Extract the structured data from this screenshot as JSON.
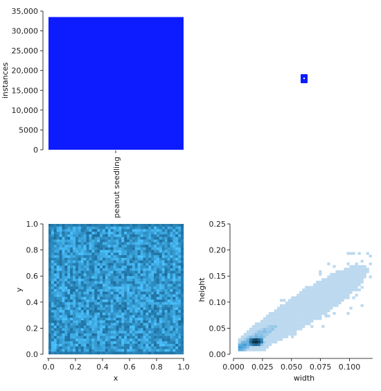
{
  "chart_data": [
    {
      "type": "bar",
      "panel": "top-left",
      "categories": [
        "peanut seedling"
      ],
      "values": [
        33500
      ],
      "ylabel": "instances",
      "ylim": [
        0,
        35000
      ],
      "yticks": [
        "0",
        "5000",
        "10,000",
        "15,000",
        "20,000",
        "25,000",
        "30,000",
        "35,000"
      ],
      "color": "#0d1cff"
    },
    {
      "type": "scatter",
      "panel": "top-right",
      "note_marker_color": "#0d1cff",
      "points": [
        {
          "x": 0.5,
          "y": 0.5
        }
      ]
    },
    {
      "type": "heatmap",
      "panel": "bottom-left",
      "xlabel": "x",
      "ylabel": "y",
      "xlim": [
        0,
        1
      ],
      "ylim": [
        0,
        1
      ],
      "xticks": [
        "0.0",
        "0.2",
        "0.4",
        "0.6",
        "0.8",
        "1.0"
      ],
      "yticks": [
        "0.0",
        "0.2",
        "0.4",
        "0.6",
        "0.8",
        "1.0"
      ],
      "grid_resolution": 50,
      "color_low": "#1e6e9e",
      "color_high": "#4cc3ff"
    },
    {
      "type": "heatmap",
      "panel": "bottom-right",
      "xlabel": "width",
      "ylabel": "height",
      "xlim": [
        0,
        0.12
      ],
      "ylim": [
        0,
        0.25
      ],
      "xticks": [
        "0.000",
        "0.025",
        "0.050",
        "0.075",
        "0.100"
      ],
      "xtick_values": [
        0,
        0.025,
        0.05,
        0.075,
        0.1
      ],
      "yticks": [
        "0.00",
        "0.05",
        "0.10",
        "0.15",
        "0.20",
        "0.25"
      ],
      "ytick_values": [
        0,
        0.05,
        0.1,
        0.15,
        0.2,
        0.25
      ],
      "density_peak": {
        "width": 0.015,
        "height": 0.018
      },
      "trend": "positive correlation, dense core near width 0.02-0.04, height 0.03-0.05",
      "color_low": "#bcd9ef",
      "color_high": "#0b2a3e"
    }
  ]
}
